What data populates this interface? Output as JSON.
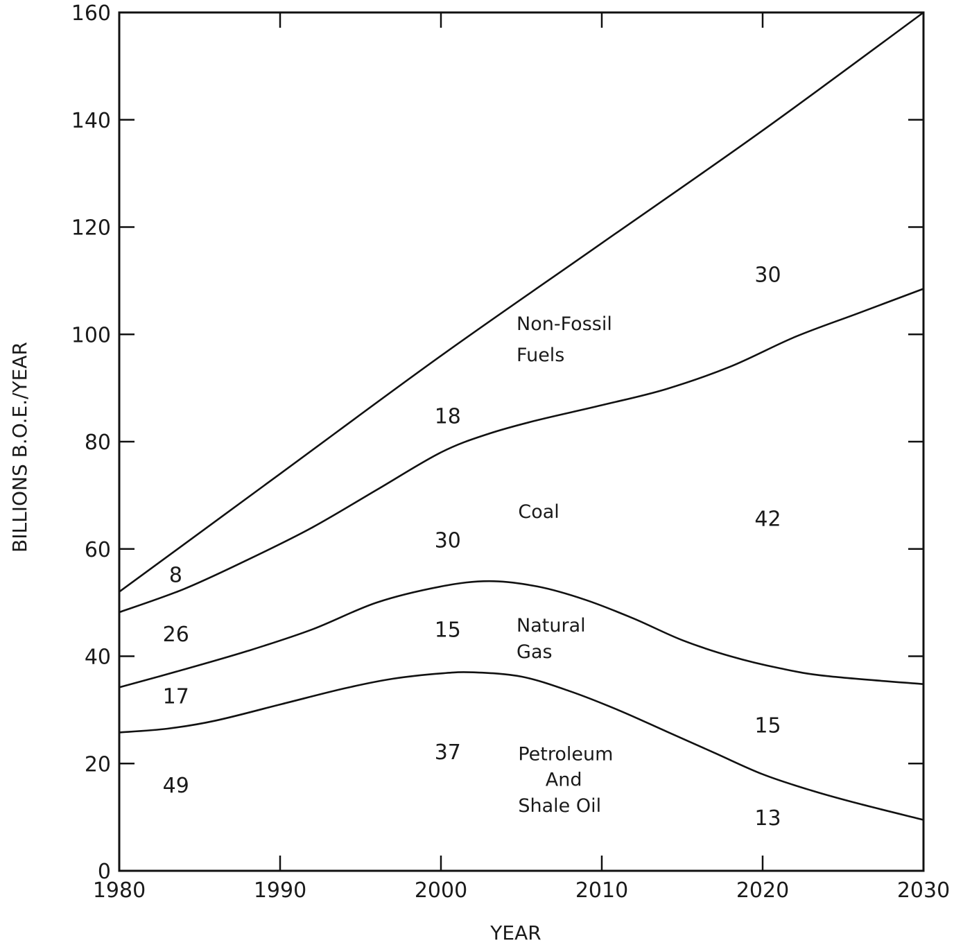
{
  "chart_data": {
    "type": "area",
    "xlabel": "YEAR",
    "ylabel": "BILLIONS B.O.E./YEAR",
    "xlim": [
      1980,
      2030
    ],
    "ylim": [
      0,
      160
    ],
    "x_ticks": [
      "1980",
      "1990",
      "2000",
      "2010",
      "2020",
      "2030"
    ],
    "y_ticks": [
      "0",
      "20",
      "40",
      "60",
      "80",
      "100",
      "120",
      "140",
      "160"
    ],
    "stacked_boundaries": [
      {
        "name": "Petroleum And Shale Oil",
        "points": [
          [
            1980,
            25.8
          ],
          [
            1983,
            26.5
          ],
          [
            1986,
            28
          ],
          [
            1990,
            31
          ],
          [
            1994,
            34
          ],
          [
            1997,
            35.8
          ],
          [
            2000,
            36.8
          ],
          [
            2002,
            37
          ],
          [
            2005,
            36.2
          ],
          [
            2008,
            33.5
          ],
          [
            2011,
            30
          ],
          [
            2014,
            26
          ],
          [
            2017,
            22
          ],
          [
            2020,
            18
          ],
          [
            2023,
            15
          ],
          [
            2026,
            12.5
          ],
          [
            2030,
            9.5
          ]
        ]
      },
      {
        "name": "Natural Gas",
        "points": [
          [
            1980,
            34.2
          ],
          [
            1984,
            37.5
          ],
          [
            1988,
            41
          ],
          [
            1992,
            45
          ],
          [
            1996,
            50
          ],
          [
            2000,
            53
          ],
          [
            2003,
            54
          ],
          [
            2006,
            53
          ],
          [
            2009,
            50.5
          ],
          [
            2012,
            47
          ],
          [
            2015,
            43
          ],
          [
            2018,
            40
          ],
          [
            2021,
            37.8
          ],
          [
            2024,
            36.3
          ],
          [
            2030,
            34.8
          ]
        ]
      },
      {
        "name": "Coal",
        "points": [
          [
            1980,
            48.2
          ],
          [
            1984,
            52.5
          ],
          [
            1988,
            58
          ],
          [
            1992,
            64
          ],
          [
            1996,
            71
          ],
          [
            2000,
            78
          ],
          [
            2003,
            81.5
          ],
          [
            2006,
            84
          ],
          [
            2010,
            86.8
          ],
          [
            2014,
            89.8
          ],
          [
            2018,
            94
          ],
          [
            2022,
            99.5
          ],
          [
            2026,
            104
          ],
          [
            2030,
            108.5
          ]
        ]
      },
      {
        "name": "Non-Fossil Fuels",
        "points": [
          [
            1980,
            52
          ],
          [
            1990,
            74
          ],
          [
            2000,
            96
          ],
          [
            2010,
            117
          ],
          [
            2020,
            138
          ],
          [
            2030,
            160
          ]
        ]
      }
    ],
    "annotations": {
      "regions": [
        {
          "lines": [
            "Non-Fossil",
            "Fuels"
          ],
          "x": 2004.7,
          "y": 100.8,
          "line_step": 5.8
        },
        {
          "lines": [
            "Coal"
          ],
          "x": 2004.8,
          "y": 65.8,
          "line_step": 0
        },
        {
          "lines": [
            "Natural",
            "Gas"
          ],
          "x": 2004.7,
          "y": 44.6,
          "line_step": 4.9
        },
        {
          "lines": [
            "Petroleum"
          ],
          "x": 2004.8,
          "y": 20.6,
          "line_step": 0
        },
        {
          "lines": [
            "And"
          ],
          "x": 2006.5,
          "y": 15.8,
          "line_step": 0
        },
        {
          "lines": [
            "Shale Oil"
          ],
          "x": 2004.8,
          "y": 11.0,
          "line_step": 0
        }
      ],
      "values": [
        {
          "text": "8",
          "x": 1983.1,
          "y": 53.8
        },
        {
          "text": "26",
          "x": 1982.7,
          "y": 42.8
        },
        {
          "text": "17",
          "x": 1982.7,
          "y": 31.2
        },
        {
          "text": "49",
          "x": 1982.7,
          "y": 14.6
        },
        {
          "text": "18",
          "x": 1999.6,
          "y": 83.4
        },
        {
          "text": "30",
          "x": 1999.6,
          "y": 60.3
        },
        {
          "text": "15",
          "x": 1999.6,
          "y": 43.6
        },
        {
          "text": "37",
          "x": 1999.6,
          "y": 20.8
        },
        {
          "text": "30",
          "x": 2019.5,
          "y": 109.8
        },
        {
          "text": "42",
          "x": 2019.5,
          "y": 64.3
        },
        {
          "text": "15",
          "x": 2019.5,
          "y": 25.8
        },
        {
          "text": "13",
          "x": 2019.5,
          "y": 8.5
        }
      ]
    }
  }
}
